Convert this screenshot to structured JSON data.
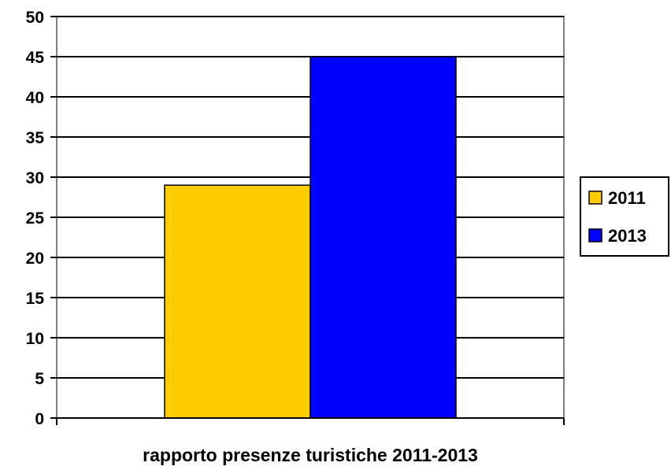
{
  "chart_data": {
    "type": "bar",
    "categories": [
      ""
    ],
    "series": [
      {
        "name": "2011",
        "values": [
          29
        ],
        "color": "#FFCC00"
      },
      {
        "name": "2013",
        "values": [
          45
        ],
        "color": "#0000FF"
      }
    ],
    "title": "",
    "xlabel": "rapporto presenze turistiche 2011-2013",
    "ylabel": "",
    "ylim": [
      0,
      50
    ],
    "yticks": [
      0,
      5,
      10,
      15,
      20,
      25,
      30,
      35,
      40,
      45,
      50
    ],
    "grid": true,
    "legend": "right"
  }
}
